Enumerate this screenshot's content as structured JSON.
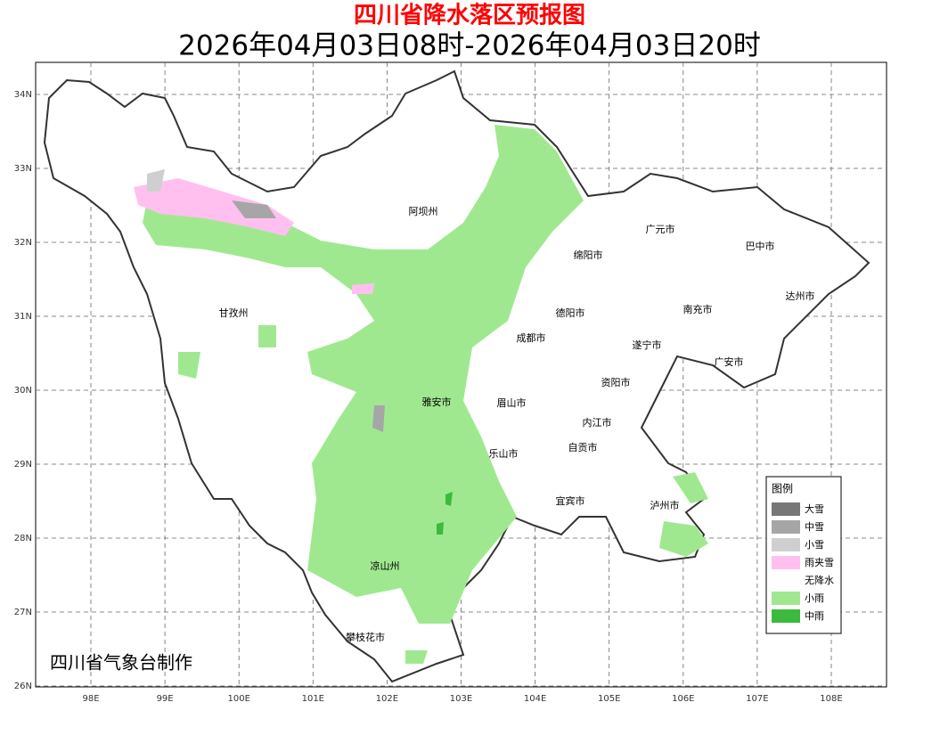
{
  "header": {
    "title": "四川省降水落区预报图",
    "subtitle": "2026年04月03日08时-2026年04月03日20时"
  },
  "axes": {
    "lat_labels": [
      "34N",
      "33N",
      "32N",
      "31N",
      "30N",
      "29N",
      "28N",
      "27N",
      "26N"
    ],
    "lon_labels": [
      "98E",
      "99E",
      "100E",
      "101E",
      "102E",
      "103E",
      "104E",
      "105E",
      "106E",
      "107E",
      "108E"
    ]
  },
  "places": [
    "阿坝州",
    "广元市",
    "巴中市",
    "绵阳市",
    "达州市",
    "德阳市",
    "南充市",
    "甘孜州",
    "成都市",
    "遂宁市",
    "广安市",
    "资阳市",
    "雅安市",
    "眉山市",
    "内江市",
    "自贡市",
    "乐山市",
    "宜宾市",
    "泸州市",
    "凉山州",
    "攀枝花市"
  ],
  "legend": {
    "title": "图例",
    "items": [
      {
        "label": "大雪",
        "color": "#777777"
      },
      {
        "label": "中雪",
        "color": "#a6a6a6"
      },
      {
        "label": "小雪",
        "color": "#cfcfcf"
      },
      {
        "label": "雨夹雪",
        "color": "#ffc0f0"
      },
      {
        "label": "无降水",
        "color": "#ffffff"
      },
      {
        "label": "小雨",
        "color": "#a0e890"
      },
      {
        "label": "中雨",
        "color": "#3cba3c"
      }
    ]
  },
  "credit": "四川省气象台制作"
}
